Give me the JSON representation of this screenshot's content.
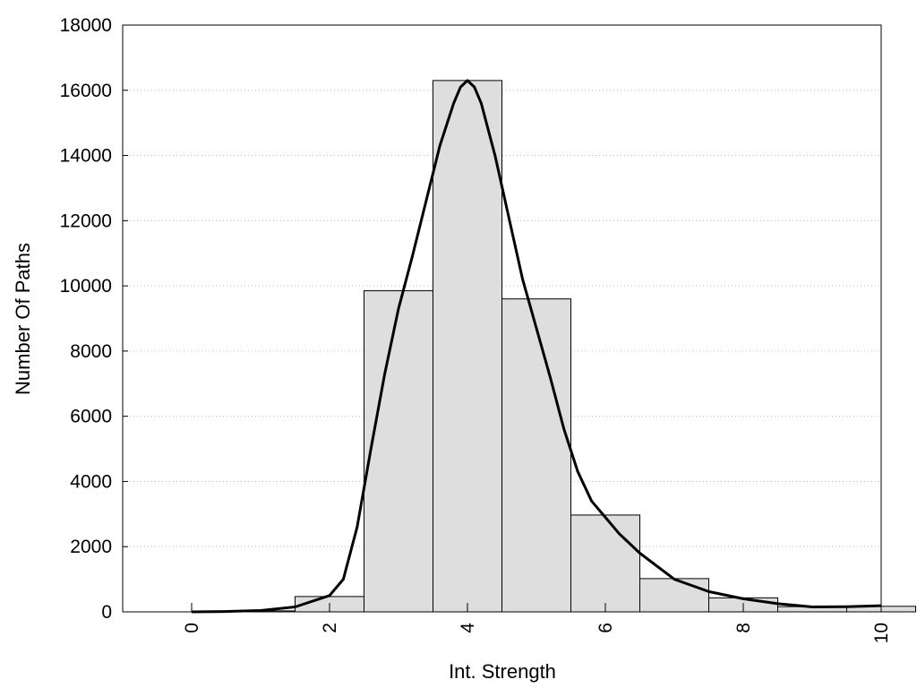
{
  "chart_data": {
    "type": "bar",
    "title": "",
    "xlabel": "Int. Strength",
    "ylabel": "Number Of Paths",
    "xlim": [
      -1,
      10
    ],
    "ylim": [
      0,
      18000
    ],
    "x_ticks": [
      "0",
      "2",
      "4",
      "6",
      "8",
      "10"
    ],
    "y_ticks": [
      "0",
      "2000",
      "4000",
      "6000",
      "8000",
      "10000",
      "12000",
      "14000",
      "16000",
      "18000"
    ],
    "grid": "horizontal dotted",
    "bar_fill": "#dedede",
    "line_color": "#000000",
    "bars": [
      {
        "x": 0,
        "value": 0
      },
      {
        "x": 1,
        "value": 30
      },
      {
        "x": 2,
        "value": 470
      },
      {
        "x": 3,
        "value": 9850
      },
      {
        "x": 4,
        "value": 16300
      },
      {
        "x": 5,
        "value": 9600
      },
      {
        "x": 6,
        "value": 2970
      },
      {
        "x": 7,
        "value": 1020
      },
      {
        "x": 8,
        "value": 430
      },
      {
        "x": 9,
        "value": 160
      },
      {
        "x": 10,
        "value": 170
      }
    ],
    "curve": {
      "x": [
        0,
        0.5,
        1,
        1.5,
        2,
        2.2,
        2.4,
        2.6,
        2.8,
        3,
        3.2,
        3.4,
        3.6,
        3.8,
        3.9,
        4,
        4.1,
        4.2,
        4.4,
        4.6,
        4.8,
        5,
        5.2,
        5.4,
        5.6,
        5.8,
        6,
        6.2,
        6.5,
        7,
        7.5,
        8,
        8.5,
        9,
        9.5,
        10
      ],
      "y": [
        0,
        10,
        40,
        150,
        500,
        1000,
        2600,
        5000,
        7300,
        9300,
        10900,
        12600,
        14300,
        15600,
        16100,
        16300,
        16100,
        15600,
        14000,
        12100,
        10200,
        8700,
        7200,
        5600,
        4300,
        3400,
        2900,
        2400,
        1800,
        1000,
        620,
        400,
        250,
        150,
        160,
        190
      ]
    }
  }
}
